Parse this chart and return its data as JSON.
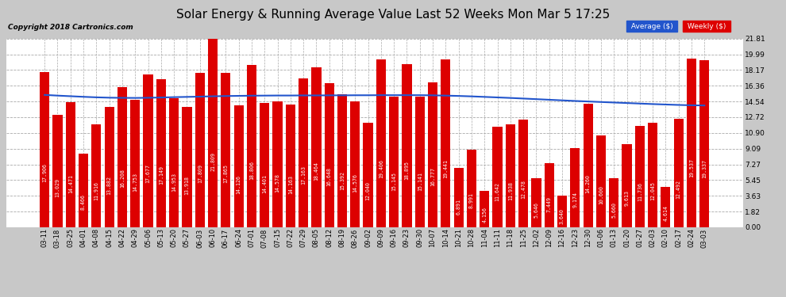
{
  "title": "Solar Energy & Running Average Value Last 52 Weeks Mon Mar 5 17:25",
  "copyright": "Copyright 2018 Cartronics.com",
  "bar_color": "#dd0000",
  "avg_line_color": "#2255cc",
  "bg_color": "#c8c8c8",
  "plot_bg_color": "#ffffff",
  "grid_color": "#aaaaaa",
  "categories": [
    "03-11",
    "03-18",
    "03-25",
    "04-01",
    "04-08",
    "04-15",
    "04-22",
    "04-29",
    "05-06",
    "05-13",
    "05-20",
    "05-27",
    "06-03",
    "06-10",
    "06-17",
    "06-24",
    "07-01",
    "07-08",
    "07-15",
    "07-22",
    "07-29",
    "08-05",
    "08-12",
    "08-19",
    "08-26",
    "09-02",
    "09-09",
    "09-16",
    "09-23",
    "09-30",
    "10-07",
    "10-14",
    "10-21",
    "10-28",
    "11-04",
    "11-11",
    "11-18",
    "11-25",
    "12-02",
    "12-09",
    "12-16",
    "12-23",
    "12-30",
    "01-06",
    "01-13",
    "01-20",
    "01-27",
    "02-03",
    "02-10",
    "02-17",
    "02-24",
    "03-03"
  ],
  "values": [
    17.906,
    13.029,
    14.471,
    8.466,
    11.916,
    13.882,
    16.208,
    14.753,
    17.677,
    17.149,
    14.953,
    13.918,
    17.809,
    21.809,
    17.865,
    14.126,
    18.806,
    14.401,
    14.578,
    14.163,
    17.163,
    18.464,
    16.648,
    15.392,
    14.576,
    12.04,
    19.406,
    15.145,
    18.895,
    15.141,
    16.777,
    19.441,
    6.891,
    8.991,
    4.156,
    11.642,
    11.938,
    12.478,
    5.646,
    7.449,
    3.64,
    9.174,
    14.26,
    10.6,
    5.66,
    9.613,
    11.736,
    12.045,
    4.614,
    12.492,
    19.537,
    19.337
  ],
  "avg_values": [
    15.3,
    15.22,
    15.15,
    15.08,
    15.02,
    14.98,
    14.96,
    14.95,
    14.97,
    15.0,
    15.04,
    15.07,
    15.1,
    15.14,
    15.17,
    15.19,
    15.21,
    15.22,
    15.23,
    15.23,
    15.24,
    15.24,
    15.25,
    15.25,
    15.26,
    15.26,
    15.27,
    15.27,
    15.27,
    15.27,
    15.25,
    15.22,
    15.18,
    15.13,
    15.07,
    15.01,
    14.95,
    14.88,
    14.81,
    14.74,
    14.67,
    14.6,
    14.54,
    14.48,
    14.42,
    14.36,
    14.3,
    14.24,
    14.19,
    14.14,
    14.1,
    14.08
  ],
  "yticks": [
    0.0,
    1.82,
    3.63,
    5.45,
    7.27,
    9.09,
    10.9,
    12.72,
    14.54,
    16.36,
    18.17,
    19.99,
    21.81
  ],
  "ymax": 21.81,
  "legend_avg_label": "Average ($)",
  "legend_weekly_label": "Weekly ($)",
  "title_fontsize": 11,
  "copyright_fontsize": 6.5,
  "bar_label_fontsize": 4.8,
  "tick_fontsize": 6,
  "ytick_fontsize": 6.5
}
